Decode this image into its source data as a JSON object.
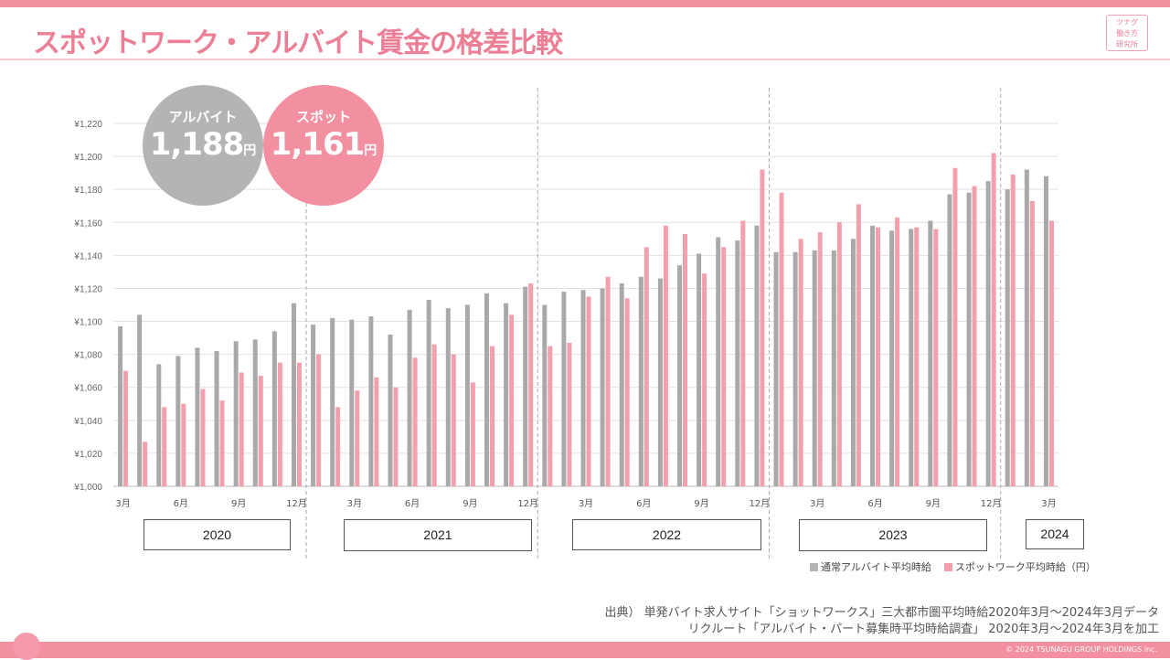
{
  "header": {
    "title": "スポットワーク・アルバイト賃金の格差比較",
    "logo_lines": [
      "ツナグ",
      "働き方",
      "研究所"
    ]
  },
  "bubbles": {
    "arubaito": {
      "label": "アルバイト",
      "value": "1,188",
      "unit": "円",
      "color": "#b4b4b4"
    },
    "spot": {
      "label": "スポット",
      "value": "1,161",
      "unit": "円",
      "color": "#f28fa0"
    }
  },
  "years": [
    "2020",
    "2021",
    "2022",
    "2023",
    "2024"
  ],
  "legend": {
    "arubaito": "通常アルバイト平均時給",
    "spot": "スポットワーク平均時給（円）"
  },
  "source": {
    "line1": "出典） 単発バイト求人サイト「ショットワークス」三大都市圏平均時給2020年3月～2024年3月データ",
    "line2": "リクルート「アルバイト・パート募集時平均時給調査」 2020年3月～2024年3月を加工"
  },
  "footer": {
    "copyright": "© 2024 TSUNAGU GROUP HOLDINGS inc."
  },
  "chart_data": {
    "type": "bar",
    "title": "スポットワーク・アルバイト賃金の格差比較",
    "ylim": [
      1000,
      1220
    ],
    "yticks": [
      1000,
      1020,
      1040,
      1060,
      1080,
      1100,
      1120,
      1140,
      1160,
      1180,
      1200,
      1220
    ],
    "ytick_labels": [
      "¥1,000",
      "¥1,020",
      "¥1,040",
      "¥1,060",
      "¥1,080",
      "¥1,100",
      "¥1,120",
      "¥1,140",
      "¥1,160",
      "¥1,180",
      "¥1,200",
      "¥1,220"
    ],
    "categories": [
      "2020-03",
      "2020-04",
      "2020-05",
      "2020-06",
      "2020-07",
      "2020-08",
      "2020-09",
      "2020-10",
      "2020-11",
      "2020-12",
      "2021-01",
      "2021-02",
      "2021-03",
      "2021-04",
      "2021-05",
      "2021-06",
      "2021-07",
      "2021-08",
      "2021-09",
      "2021-10",
      "2021-11",
      "2021-12",
      "2022-01",
      "2022-02",
      "2022-03",
      "2022-04",
      "2022-05",
      "2022-06",
      "2022-07",
      "2022-08",
      "2022-09",
      "2022-10",
      "2022-11",
      "2022-12",
      "2023-01",
      "2023-02",
      "2023-03",
      "2023-04",
      "2023-05",
      "2023-06",
      "2023-07",
      "2023-08",
      "2023-09",
      "2023-10",
      "2023-11",
      "2023-12",
      "2024-01",
      "2024-02",
      "2024-03"
    ],
    "x_tick_labels": [
      "3月",
      "",
      "",
      "6月",
      "",
      "",
      "9月",
      "",
      "",
      "12月",
      "",
      "",
      "3月",
      "",
      "",
      "6月",
      "",
      "",
      "9月",
      "",
      "",
      "12月",
      "",
      "",
      "3月",
      "",
      "",
      "6月",
      "",
      "",
      "9月",
      "",
      "",
      "12月",
      "",
      "",
      "3月",
      "",
      "",
      "6月",
      "",
      "",
      "9月",
      "",
      "",
      "12月",
      "",
      "",
      "3月"
    ],
    "year_dividers_after": [
      9,
      21,
      33,
      45
    ],
    "series": [
      {
        "name": "通常アルバイト平均時給",
        "color": "#a9a9a9",
        "values": [
          1097,
          1104,
          1074,
          1079,
          1084,
          1082,
          1088,
          1089,
          1094,
          1111,
          1098,
          1102,
          1101,
          1103,
          1092,
          1107,
          1113,
          1108,
          1110,
          1117,
          1111,
          1121,
          1110,
          1118,
          1119,
          1120,
          1123,
          1127,
          1126,
          1134,
          1141,
          1151,
          1149,
          1158,
          1142,
          1142,
          1143,
          1143,
          1150,
          1158,
          1155,
          1156,
          1161,
          1177,
          1178,
          1185,
          1180,
          1192,
          1188
        ]
      },
      {
        "name": "スポットワーク平均時給（円）",
        "color": "#f3a0ae",
        "values": [
          1070,
          1027,
          1048,
          1050,
          1059,
          1052,
          1069,
          1067,
          1075,
          1075,
          1080,
          1048,
          1058,
          1066,
          1060,
          1078,
          1086,
          1080,
          1063,
          1085,
          1104,
          1123,
          1085,
          1087,
          1115,
          1127,
          1114,
          1145,
          1158,
          1153,
          1129,
          1145,
          1161,
          1192,
          1178,
          1150,
          1154,
          1160,
          1171,
          1157,
          1163,
          1157,
          1156,
          1193,
          1182,
          1202,
          1189,
          1173,
          1161
        ]
      }
    ]
  }
}
